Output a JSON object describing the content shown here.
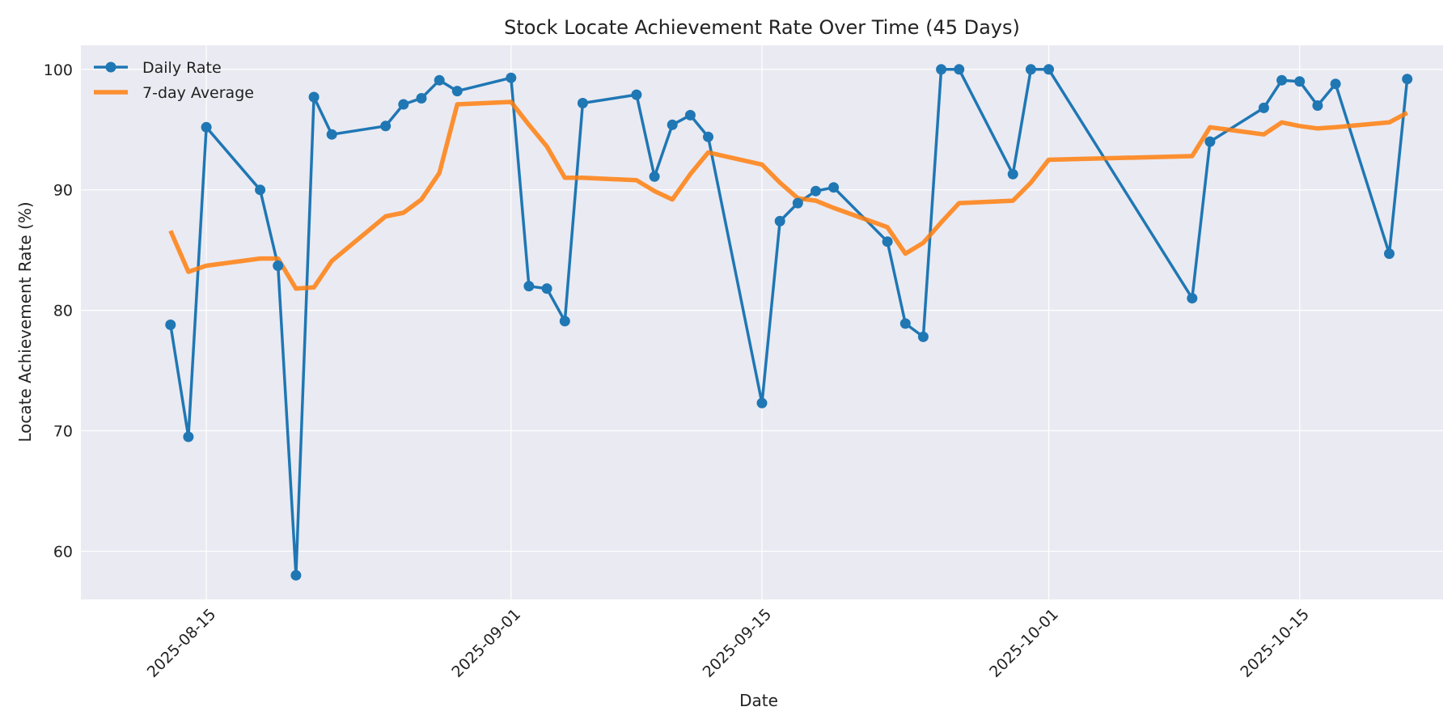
{
  "chart_data": {
    "type": "line",
    "title": "Stock Locate Achievement Rate Over Time (45 Days)",
    "xlabel": "Date",
    "ylabel": "Locate Achievement Rate (%)",
    "x_tick_labels": [
      "2025-08-15",
      "2025-09-01",
      "2025-09-15",
      "2025-10-01",
      "2025-10-15"
    ],
    "y_tick_labels": [
      "60",
      "70",
      "80",
      "90",
      "100"
    ],
    "ylim": [
      56,
      102
    ],
    "xlim": [
      "2025-08-08",
      "2025-10-23"
    ],
    "grid": true,
    "legend_position": "top-left",
    "x": [
      "2025-08-13",
      "2025-08-14",
      "2025-08-15",
      "2025-08-18",
      "2025-08-19",
      "2025-08-20",
      "2025-08-21",
      "2025-08-22",
      "2025-08-25",
      "2025-08-26",
      "2025-08-27",
      "2025-08-28",
      "2025-08-29",
      "2025-09-01",
      "2025-09-02",
      "2025-09-03",
      "2025-09-04",
      "2025-09-05",
      "2025-09-08",
      "2025-09-09",
      "2025-09-10",
      "2025-09-11",
      "2025-09-12",
      "2025-09-15",
      "2025-09-16",
      "2025-09-17",
      "2025-09-18",
      "2025-09-19",
      "2025-09-22",
      "2025-09-23",
      "2025-09-24",
      "2025-09-25",
      "2025-09-26",
      "2025-09-29",
      "2025-09-30",
      "2025-10-01",
      "2025-10-09",
      "2025-10-10",
      "2025-10-13",
      "2025-10-14",
      "2025-10-15",
      "2025-10-16",
      "2025-10-17",
      "2025-10-20",
      "2025-10-21"
    ],
    "series": [
      {
        "name": "Daily Rate",
        "color": "#1f77b4",
        "marker": "circle",
        "values": [
          78.8,
          69.5,
          95.2,
          90.0,
          83.7,
          58.0,
          97.7,
          94.6,
          95.3,
          97.1,
          97.6,
          99.1,
          98.2,
          99.3,
          82.0,
          81.8,
          79.1,
          97.2,
          97.9,
          91.1,
          95.4,
          96.2,
          94.4,
          72.3,
          87.4,
          88.9,
          89.9,
          90.2,
          85.7,
          78.9,
          77.8,
          100.0,
          100.0,
          91.3,
          100.0,
          100.0,
          81.0,
          94.0,
          96.8,
          99.1,
          99.0,
          97.0,
          98.8,
          84.7,
          99.2
        ]
      },
      {
        "name": "7-day Average",
        "color": "#ff7f0e",
        "values": [
          86.6,
          83.2,
          83.7,
          84.3,
          84.3,
          81.8,
          81.9,
          84.1,
          87.8,
          88.1,
          89.2,
          91.4,
          97.1,
          97.3,
          95.4,
          93.6,
          91.0,
          91.0,
          90.8,
          89.9,
          89.2,
          91.3,
          93.1,
          92.1,
          90.6,
          89.3,
          89.1,
          88.5,
          86.9,
          84.7,
          85.6,
          87.3,
          88.9,
          89.1,
          90.6,
          92.5,
          92.8,
          95.2,
          94.6,
          95.6,
          95.3,
          95.1,
          95.2,
          95.6,
          96.4
        ]
      }
    ]
  }
}
